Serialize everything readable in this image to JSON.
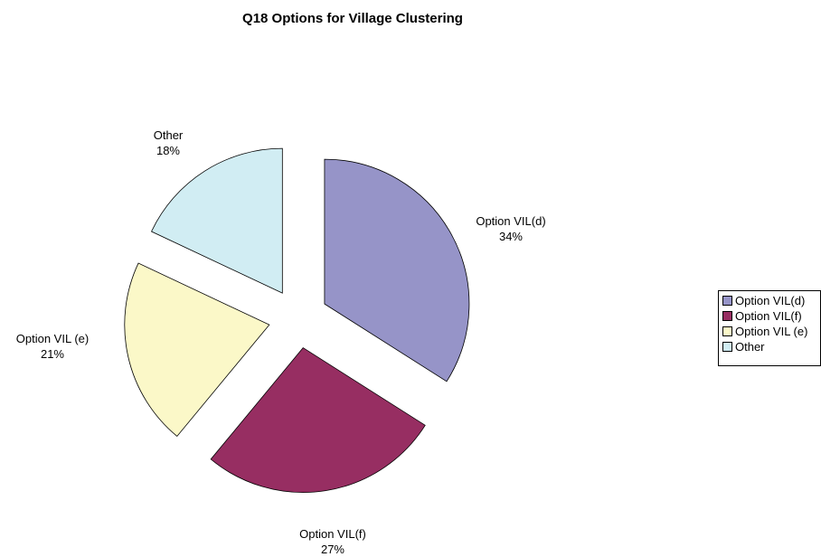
{
  "chart_data": {
    "type": "pie",
    "title": "Q18 Options for Village Clustering",
    "exploded": true,
    "legend_position": "right",
    "slices": [
      {
        "name": "Option VIL(d)",
        "value": 34,
        "label": "34%",
        "color": "#9694c8"
      },
      {
        "name": "Option VIL(f)",
        "value": 27,
        "label": "27%",
        "color": "#972e62"
      },
      {
        "name": "Option VIL (e)",
        "value": 21,
        "label": "21%",
        "color": "#fbf8c8"
      },
      {
        "name": "Other",
        "value": 18,
        "label": "18%",
        "color": "#d1edf3"
      }
    ]
  }
}
